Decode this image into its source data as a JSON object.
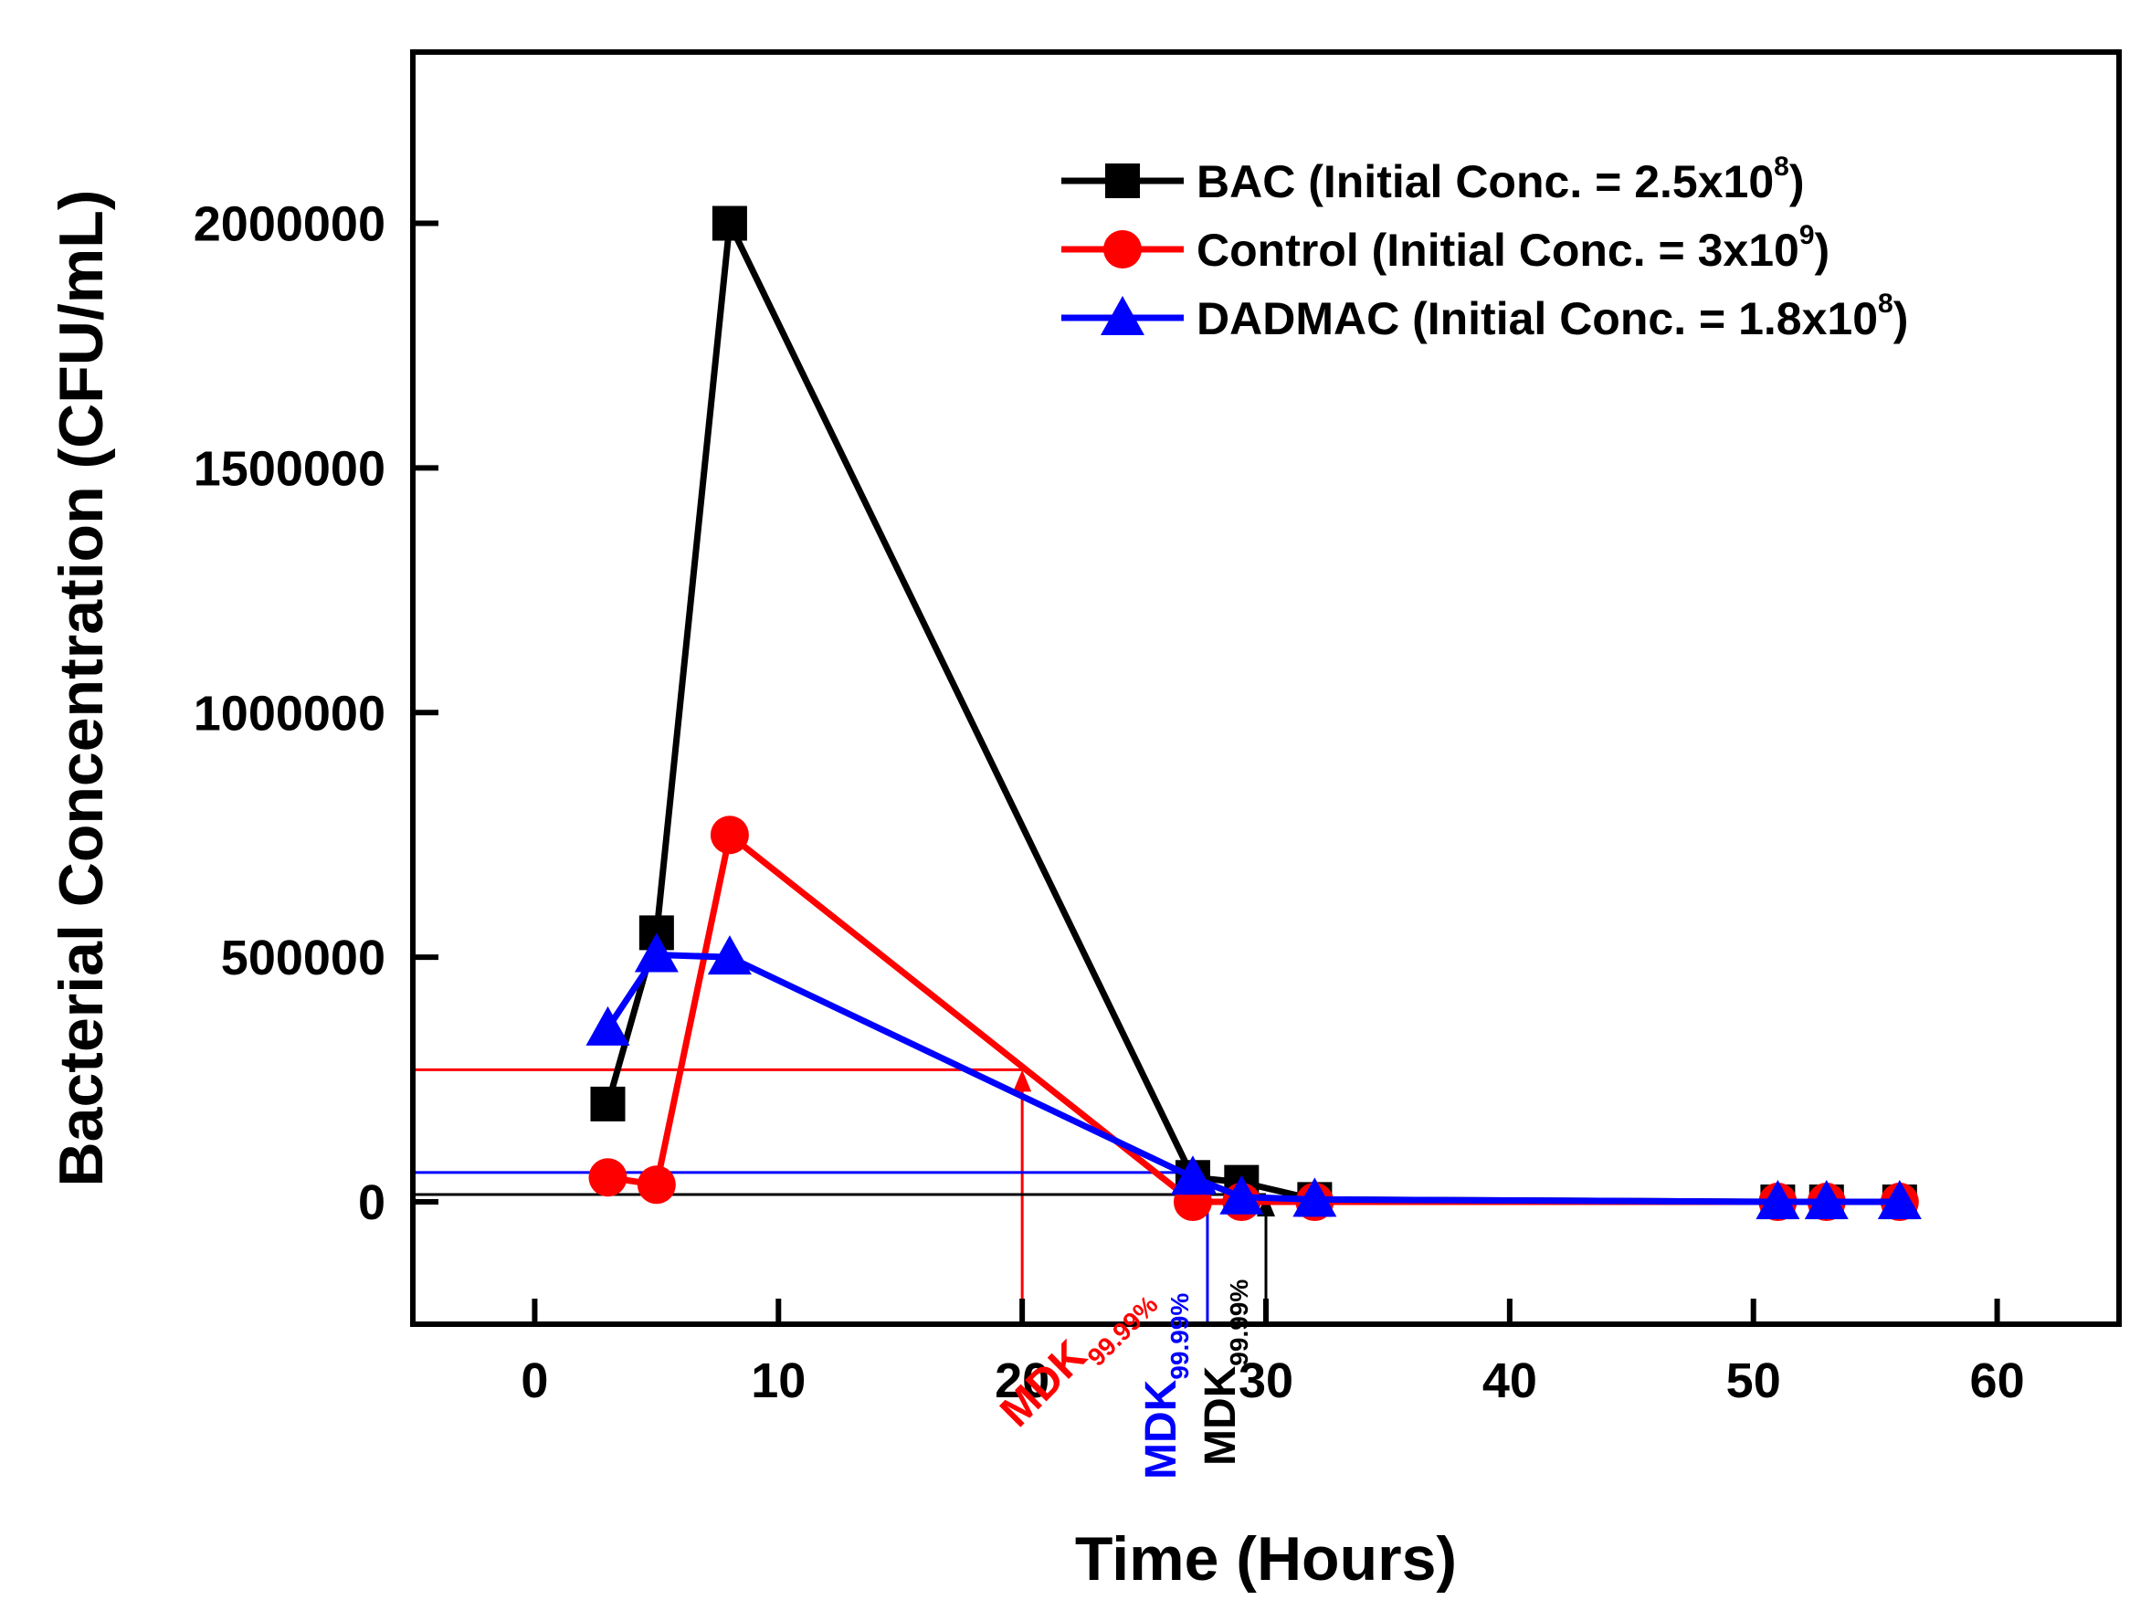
{
  "chart_data": {
    "type": "line",
    "xlabel": "Time (Hours)",
    "ylabel": "Bacterial Concentration (CFU/mL)",
    "xlim": [
      -5,
      65
    ],
    "ylim": [
      -250000,
      2350000
    ],
    "xticks": [
      0,
      10,
      20,
      30,
      40,
      50,
      60
    ],
    "yticks": [
      0,
      500000,
      1000000,
      1500000,
      2000000
    ],
    "grid": false,
    "legend_position": "top-right",
    "series": [
      {
        "name": "BAC (Initial Conc. = 2.5x10",
        "name_sup": "8",
        "name_end": ")",
        "color": "#000000",
        "marker": "square",
        "x": [
          3,
          5,
          8,
          27,
          29,
          32,
          51,
          53,
          56
        ],
        "y": [
          200000,
          550000,
          2000000,
          50000,
          40000,
          5000,
          0,
          0,
          0
        ]
      },
      {
        "name": "Control (Initial Conc. = 3x10",
        "name_sup": "9",
        "name_end": ")",
        "color": "#ff0000",
        "marker": "circle",
        "x": [
          3,
          5,
          8,
          27,
          29,
          32,
          51,
          53,
          56
        ],
        "y": [
          50000,
          35000,
          750000,
          0,
          0,
          0,
          0,
          0,
          0
        ]
      },
      {
        "name": "DADMAC (Initial Conc. = 1.8x10",
        "name_sup": "8",
        "name_end": ")",
        "color": "#0000ff",
        "marker": "triangle",
        "x": [
          3,
          5,
          8,
          27,
          29,
          32,
          51,
          53,
          56
        ],
        "y": [
          355000,
          505000,
          500000,
          50000,
          10000,
          5000,
          0,
          0,
          0
        ]
      }
    ],
    "annotations": [
      {
        "main": "MDK",
        "sub": "99.99%",
        "color": "#ff0000",
        "x": 20,
        "y": 270000
      },
      {
        "main": "MDK",
        "sub": "99.99%",
        "color": "#0000ff",
        "x": 27.6,
        "y": 60000
      },
      {
        "main": "MDK",
        "sub": "99.99%",
        "color": "#000000",
        "x": 30,
        "y": 15000
      }
    ]
  }
}
